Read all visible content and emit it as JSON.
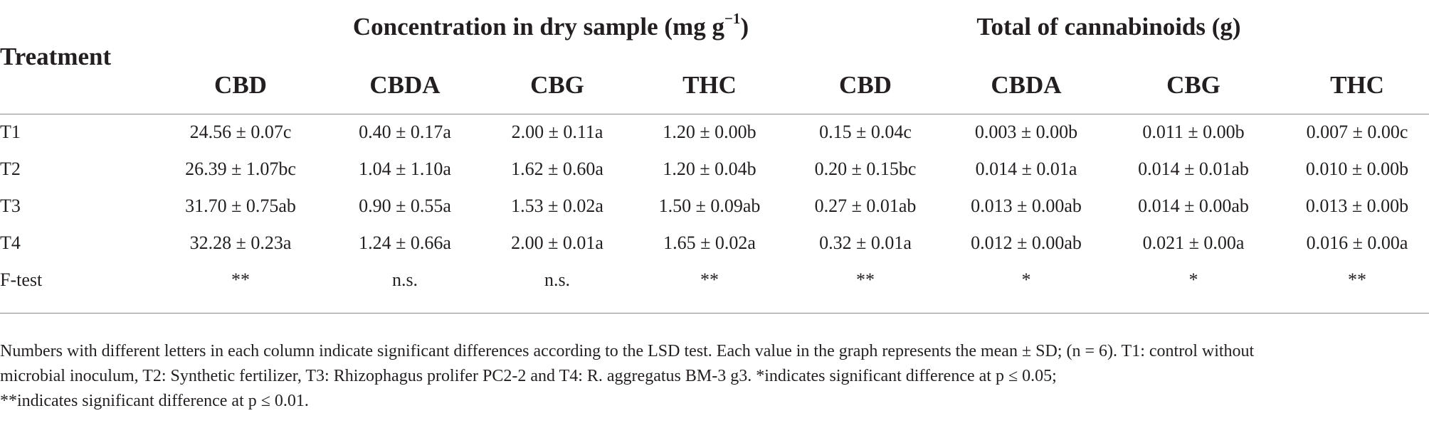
{
  "table": {
    "group_headers": {
      "concentration": "Concentration in dry sample (mg g",
      "concentration_sup": "−1",
      "concentration_close": ")",
      "total": "Total of cannabinoids (g)"
    },
    "treatment_header": "Treatment",
    "column_headers": [
      "CBD",
      "CBDA",
      "CBG",
      "THC",
      "CBD",
      "CBDA",
      "CBG",
      "THC"
    ],
    "rows": [
      {
        "label": "T1",
        "cells": [
          "24.56 ± 0.07c",
          "0.40 ± 0.17a",
          "2.00 ± 0.11a",
          "1.20 ± 0.00b",
          "0.15 ± 0.04c",
          "0.003 ± 0.00b",
          "0.011 ± 0.00b",
          "0.007 ± 0.00c"
        ]
      },
      {
        "label": "T2",
        "cells": [
          "26.39 ± 1.07bc",
          "1.04 ± 1.10a",
          "1.62 ± 0.60a",
          "1.20 ± 0.04b",
          "0.20 ± 0.15bc",
          "0.014 ± 0.01a",
          "0.014 ± 0.01ab",
          "0.010 ± 0.00b"
        ]
      },
      {
        "label": "T3",
        "cells": [
          "31.70 ± 0.75ab",
          "0.90 ± 0.55a",
          "1.53 ± 0.02a",
          "1.50 ± 0.09ab",
          "0.27 ± 0.01ab",
          "0.013 ± 0.00ab",
          "0.014 ± 0.00ab",
          "0.013 ± 0.00b"
        ]
      },
      {
        "label": "T4",
        "cells": [
          "32.28 ± 0.23a",
          "1.24 ± 0.66a",
          "2.00 ± 0.01a",
          "1.65 ± 0.02a",
          "0.32 ± 0.01a",
          "0.012 ± 0.00ab",
          "0.021 ± 0.00a",
          "0.016 ± 0.00a"
        ]
      },
      {
        "label": "F-test",
        "cells": [
          "**",
          "n.s.",
          "n.s.",
          "**",
          "**",
          "*",
          "*",
          "**"
        ]
      }
    ]
  },
  "footnote": {
    "line1": "Numbers with different letters in each column indicate significant differences according to the LSD test. Each value in the graph represents the mean ± SD; (n = 6). T1: control without",
    "line2": "microbial inoculum, T2: Synthetic fertilizer, T3: Rhizophagus prolifer PC2-2 and T4: R. aggregatus BM-3 g3. *indicates significant difference at p ≤ 0.05;",
    "line3": "**indicates significant difference at p ≤ 0.01."
  }
}
